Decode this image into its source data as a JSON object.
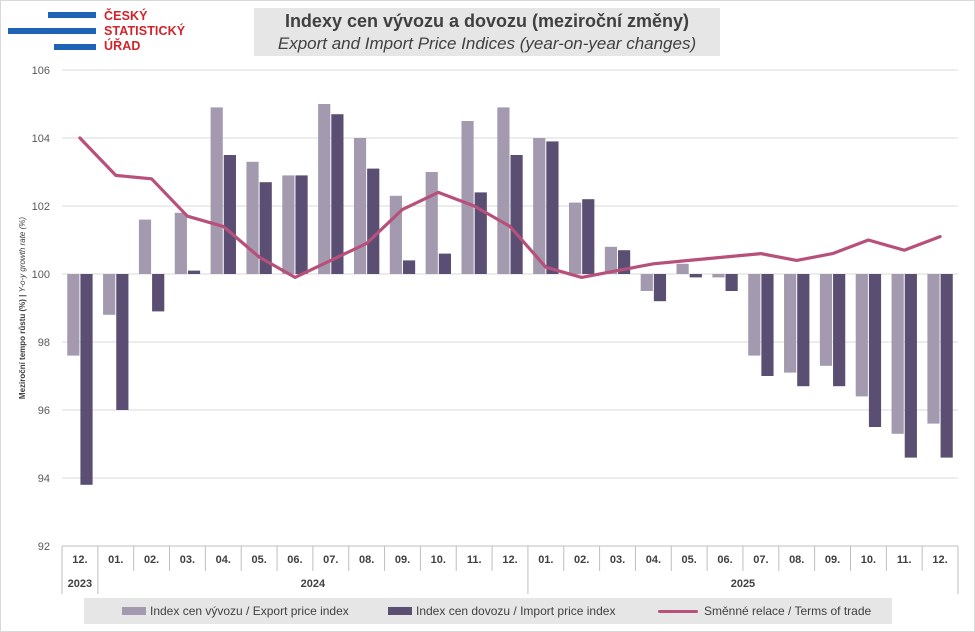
{
  "logo": {
    "line1": "ČESKÝ",
    "line2": "STATISTICKÝ",
    "line3": "ÚŘAD"
  },
  "title": {
    "cz": "Indexy cen vývozu a dovozu (meziroční změny)",
    "en": "Export and Import Price Indices (year-on-year changes)"
  },
  "colors": {
    "export": "#a49aaf",
    "import": "#5b4e73",
    "terms": "#b7507a",
    "grid": "#d9d9d9"
  },
  "chart_data": {
    "type": "bar",
    "ylabel_cz": "Meziroční tempo růstu (%)",
    "ylabel_en": "Y-o-y growth rate (%)",
    "ylim": [
      92,
      106
    ],
    "yticks": [
      "92",
      "94",
      "96",
      "98",
      "100",
      "102",
      "104",
      "106"
    ],
    "baseline": 100,
    "categories": [
      "12.",
      "01.",
      "02.",
      "03.",
      "04.",
      "05.",
      "06.",
      "07.",
      "08.",
      "09.",
      "10.",
      "11.",
      "12.",
      "01.",
      "02.",
      "03.",
      "04.",
      "05.",
      "06.",
      "07.",
      "08.",
      "09.",
      "10.",
      "11.",
      "12."
    ],
    "years": [
      {
        "label": "2023",
        "start": 0,
        "end": 0
      },
      {
        "label": "2024",
        "start": 1,
        "end": 12
      },
      {
        "label": "2025",
        "start": 13,
        "end": 24
      }
    ],
    "series": [
      {
        "name": "Index cen vývozu / Export price index",
        "type": "bar",
        "values": [
          97.6,
          98.8,
          101.6,
          101.8,
          104.9,
          103.3,
          102.9,
          105.0,
          104.0,
          102.3,
          103.0,
          104.5,
          104.9,
          104.0,
          102.1,
          100.8,
          99.5,
          100.3,
          99.9,
          97.6,
          97.1,
          97.3,
          96.4,
          95.3,
          95.6
        ]
      },
      {
        "name": "Index cen dovozu / Import price index",
        "type": "bar",
        "values": [
          93.8,
          96.0,
          98.9,
          100.1,
          103.5,
          102.7,
          102.9,
          104.7,
          103.1,
          100.4,
          100.6,
          102.4,
          103.5,
          103.9,
          102.2,
          100.7,
          99.2,
          99.9,
          99.5,
          97.0,
          96.7,
          96.7,
          95.5,
          94.6,
          94.6
        ]
      },
      {
        "name": "Směnné relace / Terms of trade",
        "type": "line",
        "values": [
          104.0,
          102.9,
          102.8,
          101.7,
          101.4,
          100.5,
          99.9,
          100.4,
          100.9,
          101.9,
          102.4,
          102.0,
          101.4,
          100.2,
          99.9,
          100.1,
          100.3,
          100.4,
          100.5,
          100.6,
          100.4,
          100.6,
          101.0,
          100.7,
          101.1
        ]
      }
    ]
  }
}
